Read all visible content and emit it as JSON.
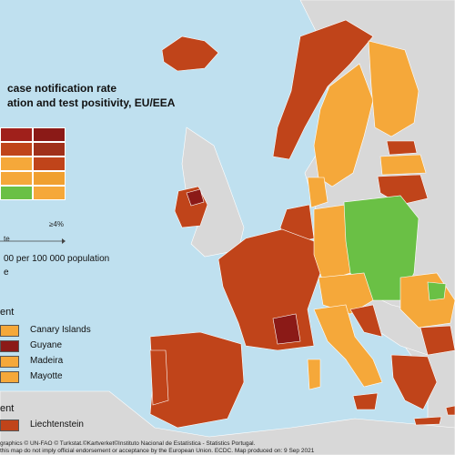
{
  "title_line1": "case notification rate",
  "title_line2": "ation and test positivity, EU/EEA",
  "legend": {
    "grid_colors": [
      [
        "#a0201b",
        "#8b1a17"
      ],
      [
        "#c0441a",
        "#a0301a"
      ],
      [
        "#f5a83a",
        "#c0441a"
      ],
      [
        "#f5a83a",
        "#f0a030"
      ],
      [
        "#6ac045",
        "#f5a83a"
      ]
    ],
    "axis_right_label": "≥4%",
    "axis_left_label": "te",
    "rate_label": "00 per 100 000 population",
    "extra_label": "e"
  },
  "outermost_heading": "ent",
  "outermost_regions": [
    {
      "name": "Canary Islands",
      "color": "#f5a83a"
    },
    {
      "name": "Guyane",
      "color": "#8b1a17"
    },
    {
      "name": "Madeira",
      "color": "#f5a83a"
    },
    {
      "name": "Mayotte",
      "color": "#f5a83a"
    }
  ],
  "small_heading": "ent",
  "small_regions": [
    {
      "name": "Liechtenstein",
      "color": "#c0441a"
    }
  ],
  "footer_line1": "graphics © UN-FAO © Turkstat.©Kartverket©Instituto Nacional de Estatística - Statistics Portugal.",
  "footer_line2": "this map do not imply official endorsement or acceptance by the European Union. ECDC. Map produced on: 9 Sep 2021",
  "colors": {
    "sea": "#bfe0ef",
    "non_eu": "#d8d8d8",
    "dark_red": "#8b1a17",
    "red": "#c0441a",
    "orange": "#f5a83a",
    "green": "#6ac045"
  }
}
